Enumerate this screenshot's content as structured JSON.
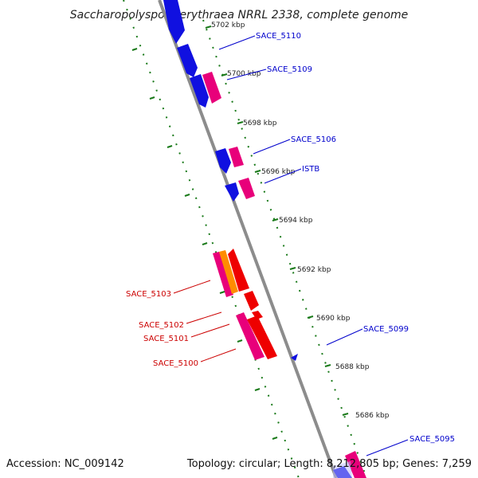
{
  "title": "Saccharopolyspora erythraea NRRL 2338, complete genome",
  "footer": {
    "accession": "Accession: NC_009142",
    "summary": "Topology: circular; Length: 8,212,805 bp; Genes: 7,259"
  },
  "colors": {
    "backbone": "#8c8c8c",
    "tick": "#1a7a1a",
    "forward_gene": "#1010e0",
    "reverse_gene": "#e8007a",
    "highlight_gene": "#ee0000",
    "orange_gene": "#ff8c00",
    "label_blue": "#0000cc",
    "label_red": "#cc0000"
  },
  "ticks": [
    {
      "label": "5702 kbp"
    },
    {
      "label": "5700 kbp"
    },
    {
      "label": "5698 kbp"
    },
    {
      "label": "5696 kbp"
    },
    {
      "label": "5694 kbp"
    },
    {
      "label": "5692 kbp"
    },
    {
      "label": "5690 kbp"
    },
    {
      "label": "5688 kbp"
    },
    {
      "label": "5686 kbp"
    }
  ],
  "genes": [
    {
      "name": "SACE_5110",
      "color": "blue"
    },
    {
      "name": "SACE_5109",
      "color": "blue"
    },
    {
      "name": "SACE_5106",
      "color": "blue"
    },
    {
      "name": "ISTB",
      "color": "blue"
    },
    {
      "name": "SACE_5099",
      "color": "blue"
    },
    {
      "name": "SACE_5095",
      "color": "blue"
    },
    {
      "name": "SACE_5103",
      "color": "red"
    },
    {
      "name": "SACE_5102",
      "color": "red"
    },
    {
      "name": "SACE_5101",
      "color": "red"
    },
    {
      "name": "SACE_5100",
      "color": "red"
    }
  ]
}
